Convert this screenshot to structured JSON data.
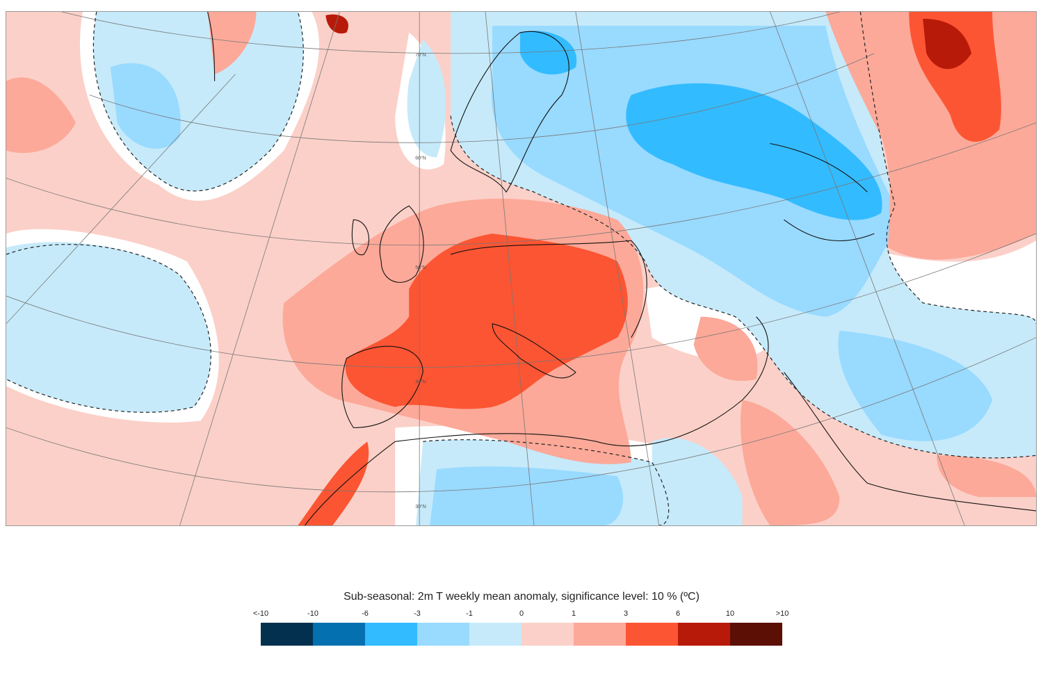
{
  "map": {
    "lat_labels": [
      "70°N",
      "60°N",
      "50°N",
      "40°N",
      "30°N"
    ],
    "colors": {
      "base": "#fbd0c8",
      "pos1": "#fca999",
      "pos3": "#fc5533",
      "pos6": "#b81a0a",
      "neg0": "#c6eafa",
      "neg1": "#99daff",
      "neg3": "#33bbff",
      "neutral": "#ffffff"
    }
  },
  "legend": {
    "title": "Sub-seasonal: 2m T weekly mean anomaly, significance level: 10 % (ºC)",
    "ticks": [
      "<-10",
      "-10",
      "-6",
      "-3",
      "-1",
      "0",
      "1",
      "3",
      "6",
      "10",
      ">10"
    ],
    "colors": [
      "#03304f",
      "#0570b0",
      "#33bbff",
      "#99daff",
      "#c6eafa",
      "#fbd0c8",
      "#fca999",
      "#fc5533",
      "#b81a0a",
      "#5c0f05"
    ]
  }
}
